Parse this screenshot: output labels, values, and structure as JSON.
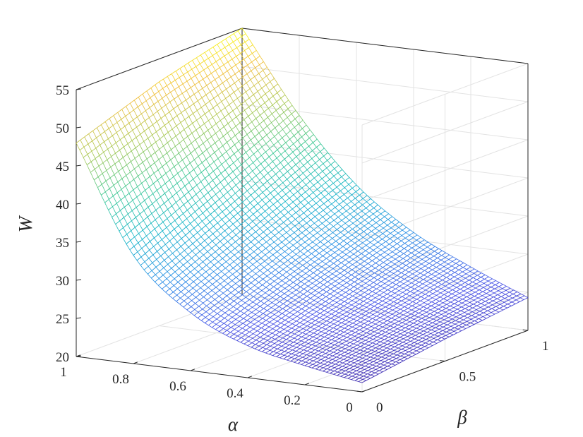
{
  "chart_data": {
    "type": "surface",
    "title": "",
    "xlabel": "α",
    "ylabel": "β",
    "zlabel": "W",
    "xlim": [
      0,
      1
    ],
    "ylim": [
      0,
      1
    ],
    "zlim": [
      20,
      55
    ],
    "x_ticks": [
      "0",
      "0.2",
      "0.4",
      "0.6",
      "0.8",
      "1"
    ],
    "y_ticks": [
      "0",
      "0.5",
      "1"
    ],
    "z_ticks": [
      "20",
      "25",
      "30",
      "35",
      "40",
      "45",
      "50",
      "55"
    ],
    "grid": true,
    "colormap": "parula",
    "surface": {
      "alpha": [
        0,
        0.2,
        0.4,
        0.6,
        0.8,
        1
      ],
      "beta": [
        0,
        0.5,
        1
      ],
      "W": [
        [
          21.2,
          22.9,
          24.3
        ],
        [
          22.5,
          24.9,
          27.4
        ],
        [
          24.2,
          27.6,
          31.0
        ],
        [
          27.6,
          32.0,
          36.3
        ],
        [
          34.2,
          39.3,
          44.5
        ],
        [
          48.0,
          52.0,
          55.0
        ]
      ]
    }
  }
}
